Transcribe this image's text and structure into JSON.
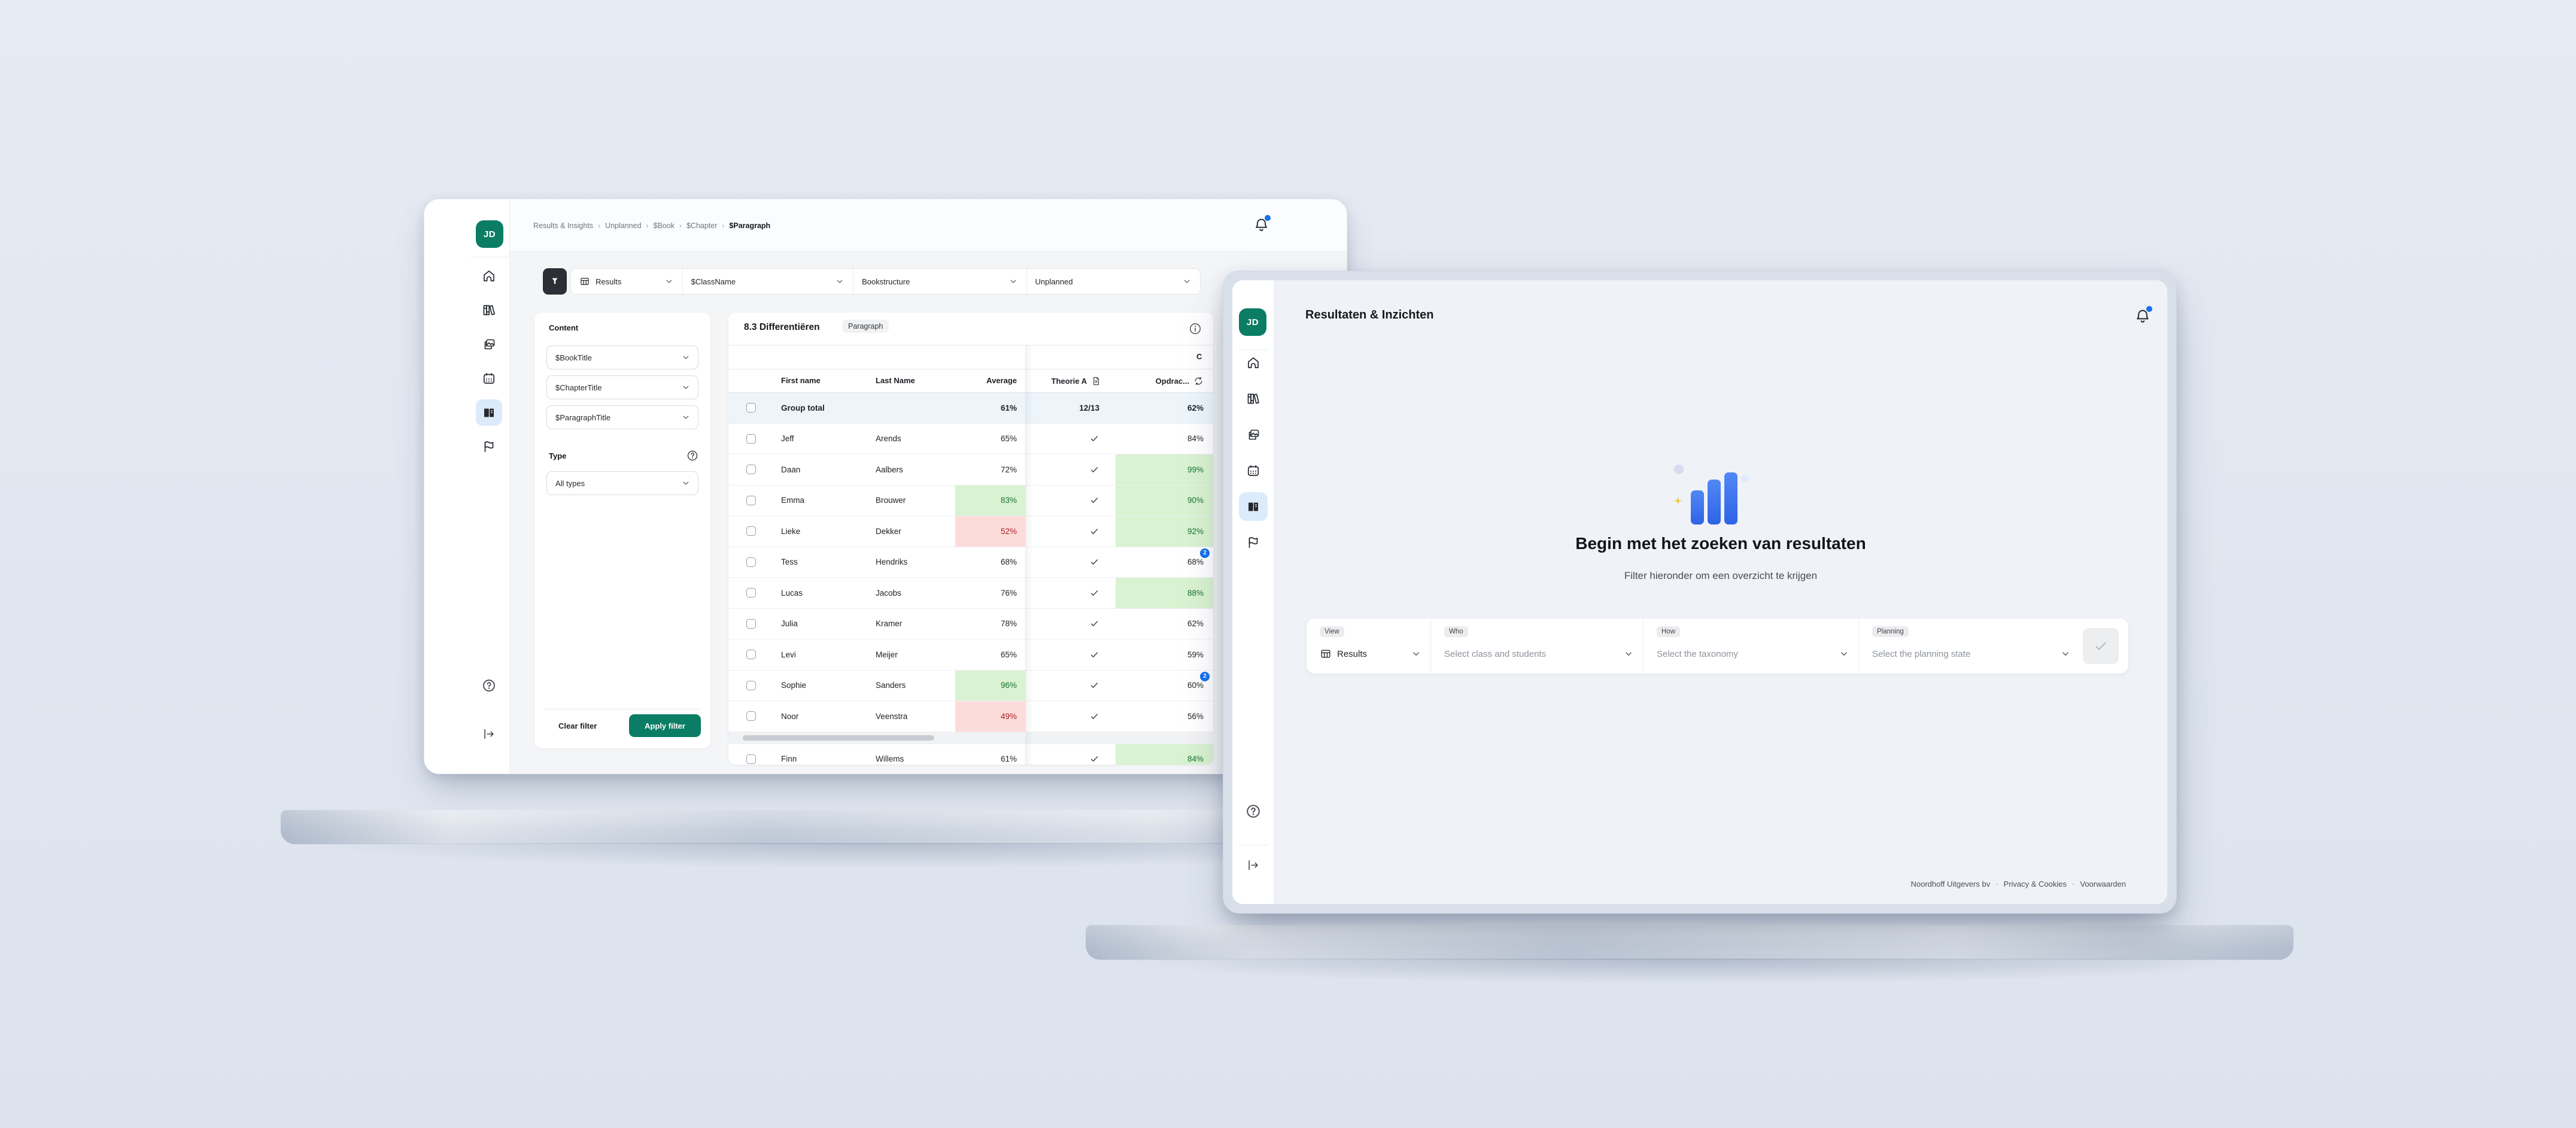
{
  "colors": {
    "accent_green": "#0b7d64",
    "badge_blue": "#1570ef",
    "bar_blue": "#2d63e6",
    "active_nav_bg": "#dcebfb",
    "good_cell": "#d9f2d1",
    "bad_cell": "#fcdcda"
  },
  "back": {
    "avatar": "JD",
    "breadcrumb": {
      "items": [
        "Results & Insights",
        "Unplanned",
        "$Book",
        "$Chapter"
      ],
      "current": "$Paragraph"
    },
    "toolbar": {
      "segments": [
        {
          "label": "Results",
          "icon": "table"
        },
        {
          "label": "$ClassName"
        },
        {
          "label": "Bookstructure"
        },
        {
          "label": "Unplanned"
        }
      ]
    },
    "filter_panel": {
      "content_label": "Content",
      "content_selects": [
        "$BookTitle",
        "$ChapterTitle",
        "$ParagraphTitle"
      ],
      "type_label": "Type",
      "type_value": "All types",
      "clear_label": "Clear filter",
      "apply_label": "Apply filter"
    },
    "table": {
      "title": "8.3 Differentiëren",
      "badge": "Paragraph",
      "group_header": "C",
      "columns": [
        "First name",
        "Last Name",
        "Average",
        "Theorie A",
        "Opdrac..."
      ],
      "rows": [
        {
          "first": "Group total",
          "last": "",
          "avg": "61%",
          "theorie": "12/13",
          "opdr": "62%",
          "is_total": true
        },
        {
          "first": "Jeff",
          "last": "Arends",
          "avg": "65%",
          "theorie": "check",
          "opdr": "84%"
        },
        {
          "first": "Daan",
          "last": "Aalbers",
          "avg": "72%",
          "theorie": "check",
          "opdr": "99%",
          "opdr_state": "good"
        },
        {
          "first": "Emma",
          "last": "Brouwer",
          "avg": "83%",
          "avg_state": "good",
          "theorie": "check",
          "opdr": "90%",
          "opdr_state": "good"
        },
        {
          "first": "Lieke",
          "last": "Dekker",
          "avg": "52%",
          "avg_state": "bad",
          "theorie": "check",
          "opdr": "92%",
          "opdr_state": "good"
        },
        {
          "first": "Tess",
          "last": "Hendriks",
          "avg": "68%",
          "theorie": "check",
          "opdr": "68%",
          "opdr_badge": "2"
        },
        {
          "first": "Lucas",
          "last": "Jacobs",
          "avg": "76%",
          "theorie": "check",
          "opdr": "88%",
          "opdr_state": "good"
        },
        {
          "first": "Julia",
          "last": "Kramer",
          "avg": "78%",
          "theorie": "check",
          "opdr": "62%"
        },
        {
          "first": "Levi",
          "last": "Meijer",
          "avg": "65%",
          "theorie": "check",
          "opdr": "59%"
        },
        {
          "first": "Sophie",
          "last": "Sanders",
          "avg": "96%",
          "avg_state": "good",
          "theorie": "check",
          "opdr": "60%",
          "opdr_badge": "2"
        },
        {
          "first": "Noor",
          "last": "Veenstra",
          "avg": "49%",
          "avg_state": "bad",
          "theorie": "check",
          "opdr": "56%"
        },
        {
          "first": "Finn",
          "last": "Willems",
          "avg": "61%",
          "theorie": "check",
          "opdr": "84%",
          "opdr_state": "good",
          "after_scrollbar": true
        }
      ]
    }
  },
  "front": {
    "avatar": "JD",
    "title": "Resultaten & Inzichten",
    "empty_state": {
      "heading": "Begin met het zoeken van resultaten",
      "subtitle": "Filter hieronder om een overzicht te krijgen"
    },
    "filter_bar": {
      "sections": [
        {
          "label": "View",
          "value": "Results",
          "placeholder": false,
          "icon": "table"
        },
        {
          "label": "Who",
          "value": "Select class and students",
          "placeholder": true
        },
        {
          "label": "How",
          "value": "Select the taxonomy",
          "placeholder": true
        },
        {
          "label": "Planning",
          "value": "Select the planning state",
          "placeholder": true
        }
      ]
    },
    "footer": {
      "company": "Noordhoff Uitgevers bv",
      "separator": "·",
      "links": [
        "Privacy & Cookies",
        "Voorwaarden"
      ]
    }
  }
}
